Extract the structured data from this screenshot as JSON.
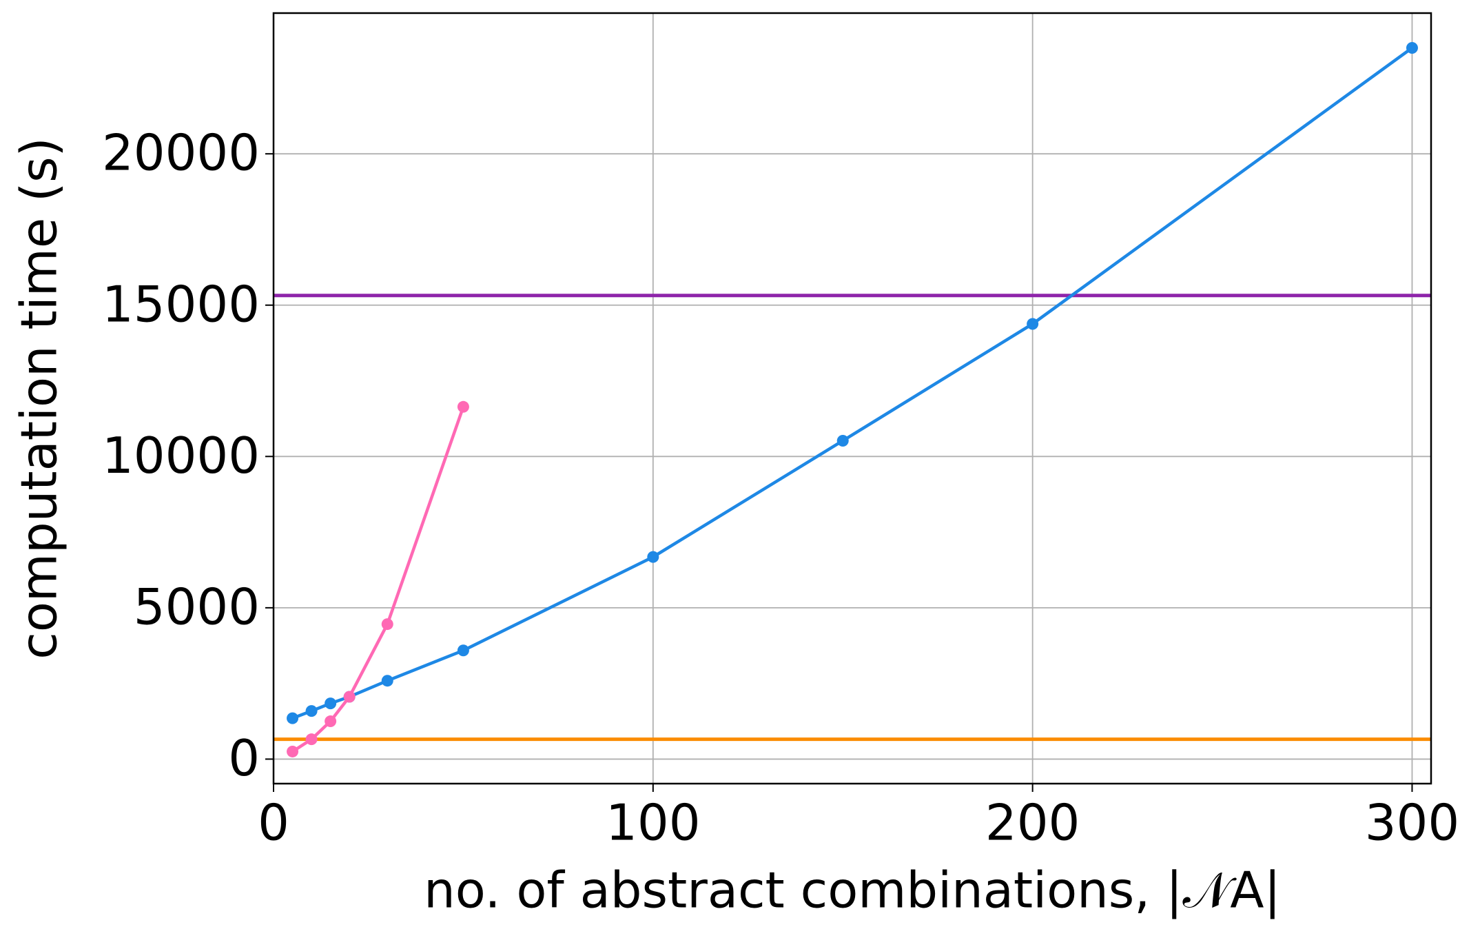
{
  "chart_data": {
    "type": "line",
    "xlabel": "no. of abstract combinations, |𝒩A|",
    "ylabel": "computation time (s)",
    "series": [
      {
        "color": "#1e88e5",
        "x": [
          5,
          10,
          15,
          20,
          30,
          50,
          100,
          150,
          200,
          300
        ],
        "values": [
          1350,
          1590,
          1840,
          2060,
          2590,
          3590,
          6680,
          10520,
          14380,
          23500
        ]
      },
      {
        "color": "#ff69b4",
        "x": [
          5,
          10,
          15,
          20,
          30,
          50
        ],
        "values": [
          250,
          655,
          1250,
          2060,
          4460,
          11640
        ]
      }
    ],
    "hlines": [
      {
        "color": "#8e24aa",
        "value": 15320
      },
      {
        "color": "#fb8c00",
        "value": 655
      }
    ],
    "xlim": [
      0,
      305
    ],
    "ylim": [
      -810,
      24650
    ],
    "xticks": [
      0,
      100,
      200,
      300
    ],
    "yticks": [
      0,
      5000,
      10000,
      15000,
      20000
    ],
    "grid": true
  }
}
